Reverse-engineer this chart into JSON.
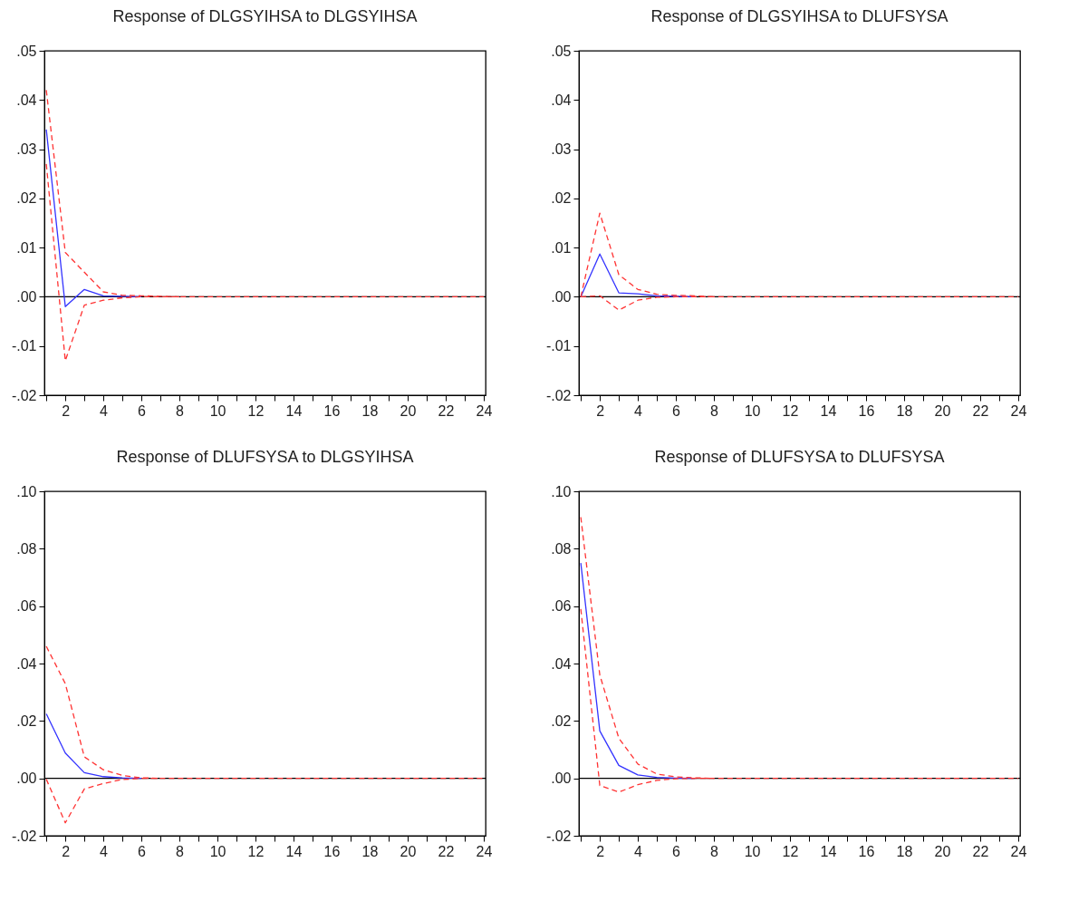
{
  "chart_data": [
    {
      "type": "line",
      "title": "Response of DLGSYIHSA to DLGSYIHSA",
      "x": [
        1,
        2,
        3,
        4,
        5,
        6,
        7,
        8,
        9,
        10,
        11,
        12,
        13,
        14,
        15,
        16,
        17,
        18,
        19,
        20,
        21,
        22,
        23,
        24
      ],
      "xlim": [
        0.9,
        24.1
      ],
      "xticks": [
        {
          "value": 1,
          "label": null
        },
        2,
        {
          "value": 3,
          "label": null
        },
        4,
        {
          "value": 5,
          "label": null
        },
        6,
        {
          "value": 7,
          "label": null
        },
        8,
        {
          "value": 9,
          "label": null
        },
        10,
        {
          "value": 11,
          "label": null
        },
        12,
        {
          "value": 13,
          "label": null
        },
        14,
        {
          "value": 15,
          "label": null
        },
        16,
        {
          "value": 17,
          "label": null
        },
        18,
        {
          "value": 19,
          "label": null
        },
        20,
        {
          "value": 21,
          "label": null
        },
        22,
        {
          "value": 23,
          "label": null
        },
        24
      ],
      "ylim": [
        -0.02,
        0.05
      ],
      "yticks": [
        {
          "value": -0.02,
          "label": "-.02"
        },
        {
          "value": -0.01,
          "label": "-.01"
        },
        {
          "value": 0,
          "label": ".00"
        },
        {
          "value": 0.01,
          "label": ".01"
        },
        {
          "value": 0.02,
          "label": ".02"
        },
        {
          "value": 0.03,
          "label": ".03"
        },
        {
          "value": 0.04,
          "label": ".04"
        },
        {
          "value": 0.05,
          "label": ".05"
        }
      ],
      "ref_lines": [
        {
          "axis": "y",
          "value": 0,
          "color": "#000000"
        }
      ],
      "series": [
        {
          "color": "#3333ff",
          "line_style": "solid",
          "values": [
            0.034,
            -0.002,
            0.0015,
            0.0002,
            0.0001,
            0,
            null,
            null,
            null,
            null,
            null,
            null,
            null,
            null,
            null,
            null,
            null,
            null,
            null,
            null,
            null,
            null,
            null,
            null
          ]
        },
        {
          "color": "#ff3333",
          "line_style": "dashed",
          "values": [
            0.042,
            0.009,
            0.005,
            0.001,
            0.0003,
            0.0002,
            0.0001,
            0,
            null,
            null,
            null,
            null,
            null,
            null,
            null,
            null,
            null,
            null,
            null,
            null,
            null,
            null,
            null,
            null
          ]
        },
        {
          "color": "#ff3333",
          "line_style": "dashed",
          "values": [
            0.027,
            -0.013,
            -0.0017,
            -0.0007,
            -0.0002,
            0,
            0,
            0,
            0,
            0,
            0,
            0,
            0,
            0,
            0,
            0,
            0,
            0,
            0,
            0,
            0,
            0,
            0,
            0
          ]
        }
      ]
    },
    {
      "type": "line",
      "title": "Response of DLGSYIHSA to DLUFSYSA",
      "x": [
        1,
        2,
        3,
        4,
        5,
        6,
        7,
        8,
        9,
        10,
        11,
        12,
        13,
        14,
        15,
        16,
        17,
        18,
        19,
        20,
        21,
        22,
        23,
        24
      ],
      "xlim": [
        0.9,
        24.1
      ],
      "xticks": [
        {
          "value": 1,
          "label": null
        },
        2,
        {
          "value": 3,
          "label": null
        },
        4,
        {
          "value": 5,
          "label": null
        },
        6,
        {
          "value": 7,
          "label": null
        },
        8,
        {
          "value": 9,
          "label": null
        },
        10,
        {
          "value": 11,
          "label": null
        },
        12,
        {
          "value": 13,
          "label": null
        },
        14,
        {
          "value": 15,
          "label": null
        },
        16,
        {
          "value": 17,
          "label": null
        },
        18,
        {
          "value": 19,
          "label": null
        },
        20,
        {
          "value": 21,
          "label": null
        },
        22,
        {
          "value": 23,
          "label": null
        },
        24
      ],
      "ylim": [
        -0.02,
        0.05
      ],
      "yticks": [
        {
          "value": -0.02,
          "label": "-.02"
        },
        {
          "value": -0.01,
          "label": "-.01"
        },
        {
          "value": 0,
          "label": ".00"
        },
        {
          "value": 0.01,
          "label": ".01"
        },
        {
          "value": 0.02,
          "label": ".02"
        },
        {
          "value": 0.03,
          "label": ".03"
        },
        {
          "value": 0.04,
          "label": ".04"
        },
        {
          "value": 0.05,
          "label": ".05"
        }
      ],
      "ref_lines": [
        {
          "axis": "y",
          "value": 0,
          "color": "#000000"
        }
      ],
      "series": [
        {
          "color": "#3333ff",
          "line_style": "solid",
          "values": [
            0,
            0.0087,
            0.0008,
            0.0006,
            0.0002,
            0.0001,
            0,
            null,
            null,
            null,
            null,
            null,
            null,
            null,
            null,
            null,
            null,
            null,
            null,
            null,
            null,
            null,
            null,
            null
          ]
        },
        {
          "color": "#ff3333",
          "line_style": "dashed",
          "values": [
            0,
            0.017,
            0.0045,
            0.0015,
            0.0005,
            0.0003,
            0.0002,
            0,
            null,
            null,
            null,
            null,
            null,
            null,
            null,
            null,
            null,
            null,
            null,
            null,
            null,
            null,
            null,
            null
          ]
        },
        {
          "color": "#ff3333",
          "line_style": "dashed",
          "values": [
            0,
            0.0002,
            -0.0027,
            -0.0007,
            -0.0001,
            0,
            0,
            0,
            0,
            0,
            0,
            0,
            0,
            0,
            0,
            0,
            0,
            0,
            0,
            0,
            0,
            0,
            0,
            0
          ]
        }
      ]
    },
    {
      "type": "line",
      "title": "Response of DLUFSYSA to DLGSYIHSA",
      "x": [
        1,
        2,
        3,
        4,
        5,
        6,
        7,
        8,
        9,
        10,
        11,
        12,
        13,
        14,
        15,
        16,
        17,
        18,
        19,
        20,
        21,
        22,
        23,
        24
      ],
      "xlim": [
        0.9,
        24.1
      ],
      "xticks": [
        {
          "value": 1,
          "label": null
        },
        2,
        {
          "value": 3,
          "label": null
        },
        4,
        {
          "value": 5,
          "label": null
        },
        6,
        {
          "value": 7,
          "label": null
        },
        8,
        {
          "value": 9,
          "label": null
        },
        10,
        {
          "value": 11,
          "label": null
        },
        12,
        {
          "value": 13,
          "label": null
        },
        14,
        {
          "value": 15,
          "label": null
        },
        16,
        {
          "value": 17,
          "label": null
        },
        18,
        {
          "value": 19,
          "label": null
        },
        20,
        {
          "value": 21,
          "label": null
        },
        22,
        {
          "value": 23,
          "label": null
        },
        24
      ],
      "ylim": [
        -0.02,
        0.1
      ],
      "yticks": [
        {
          "value": -0.02,
          "label": "-.02"
        },
        {
          "value": 0,
          "label": ".00"
        },
        {
          "value": 0.02,
          "label": ".02"
        },
        {
          "value": 0.04,
          "label": ".04"
        },
        {
          "value": 0.06,
          "label": ".06"
        },
        {
          "value": 0.08,
          "label": ".08"
        },
        {
          "value": 0.1,
          "label": ".10"
        }
      ],
      "ref_lines": [
        {
          "axis": "y",
          "value": 0,
          "color": "#000000"
        }
      ],
      "series": [
        {
          "color": "#3333ff",
          "line_style": "solid",
          "values": [
            0.0225,
            0.0088,
            0.002,
            0.0006,
            0.0002,
            0,
            null,
            null,
            null,
            null,
            null,
            null,
            null,
            null,
            null,
            null,
            null,
            null,
            null,
            null,
            null,
            null,
            null,
            null
          ]
        },
        {
          "color": "#ff3333",
          "line_style": "dashed",
          "values": [
            0.046,
            0.033,
            0.0075,
            0.003,
            0.001,
            0.0002,
            0,
            null,
            null,
            null,
            null,
            null,
            null,
            null,
            null,
            null,
            null,
            null,
            null,
            null,
            null,
            null,
            null,
            null
          ]
        },
        {
          "color": "#ff3333",
          "line_style": "dashed",
          "values": [
            -0.0003,
            -0.0155,
            -0.0037,
            -0.0018,
            -0.0004,
            0,
            0,
            0,
            0,
            0,
            0,
            0,
            0,
            0,
            0,
            0,
            0,
            0,
            0,
            0,
            0,
            0,
            0,
            0
          ]
        }
      ]
    },
    {
      "type": "line",
      "title": "Response of DLUFSYSA to DLUFSYSA",
      "x": [
        1,
        2,
        3,
        4,
        5,
        6,
        7,
        8,
        9,
        10,
        11,
        12,
        13,
        14,
        15,
        16,
        17,
        18,
        19,
        20,
        21,
        22,
        23,
        24
      ],
      "xlim": [
        0.9,
        24.1
      ],
      "xticks": [
        {
          "value": 1,
          "label": null
        },
        2,
        {
          "value": 3,
          "label": null
        },
        4,
        {
          "value": 5,
          "label": null
        },
        6,
        {
          "value": 7,
          "label": null
        },
        8,
        {
          "value": 9,
          "label": null
        },
        10,
        {
          "value": 11,
          "label": null
        },
        12,
        {
          "value": 13,
          "label": null
        },
        14,
        {
          "value": 15,
          "label": null
        },
        16,
        {
          "value": 17,
          "label": null
        },
        18,
        {
          "value": 19,
          "label": null
        },
        20,
        {
          "value": 21,
          "label": null
        },
        22,
        {
          "value": 23,
          "label": null
        },
        24
      ],
      "ylim": [
        -0.02,
        0.1
      ],
      "yticks": [
        {
          "value": -0.02,
          "label": "-.02"
        },
        {
          "value": 0,
          "label": ".00"
        },
        {
          "value": 0.02,
          "label": ".02"
        },
        {
          "value": 0.04,
          "label": ".04"
        },
        {
          "value": 0.06,
          "label": ".06"
        },
        {
          "value": 0.08,
          "label": ".08"
        },
        {
          "value": 0.1,
          "label": ".10"
        }
      ],
      "ref_lines": [
        {
          "axis": "y",
          "value": 0,
          "color": "#000000"
        }
      ],
      "series": [
        {
          "color": "#3333ff",
          "line_style": "solid",
          "values": [
            0.075,
            0.0165,
            0.0045,
            0.0012,
            0.0003,
            0.0001,
            0,
            null,
            null,
            null,
            null,
            null,
            null,
            null,
            null,
            null,
            null,
            null,
            null,
            null,
            null,
            null,
            null,
            null
          ]
        },
        {
          "color": "#ff3333",
          "line_style": "dashed",
          "values": [
            0.091,
            0.036,
            0.014,
            0.005,
            0.0015,
            0.0005,
            0.0002,
            0,
            null,
            null,
            null,
            null,
            null,
            null,
            null,
            null,
            null,
            null,
            null,
            null,
            null,
            null,
            null,
            null
          ]
        },
        {
          "color": "#ff3333",
          "line_style": "dashed",
          "values": [
            0.059,
            -0.0025,
            -0.0048,
            -0.0022,
            -0.0007,
            -0.0001,
            0,
            0,
            0,
            0,
            0,
            0,
            0,
            0,
            0,
            0,
            0,
            0,
            0,
            0,
            0,
            0,
            0,
            0
          ]
        }
      ]
    }
  ]
}
